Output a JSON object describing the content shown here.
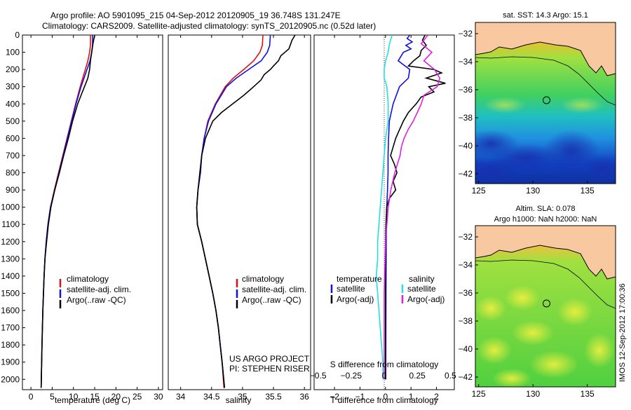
{
  "header": {
    "line1": "Argo profile: AO 5901095_215 04-Sep-2012 20120905_19 36.748S 131.247E",
    "line2": "Climatology: CARS2009. Satellite-adjusted climatology: synTS_20120905.nc (0.52d later)"
  },
  "colors": {
    "climatology": "#e01010",
    "satellite": "#1010e0",
    "argo": "#000000",
    "sat_s": "#20e0e0",
    "argo_s": "#e020e0",
    "land": "#f8c8a0"
  },
  "chart_data": [
    {
      "type": "line",
      "panel": "temperature",
      "xlabel": "temperature (deg C)",
      "xlim": [
        -2,
        31
      ],
      "xticks": [
        0,
        5,
        10,
        15,
        20,
        25,
        30
      ],
      "ylim": [
        0,
        2060
      ],
      "yticks": [
        0,
        100,
        200,
        300,
        400,
        500,
        600,
        700,
        800,
        900,
        1000,
        1100,
        1200,
        1300,
        1400,
        1500,
        1600,
        1700,
        1800,
        1900,
        2000
      ],
      "yreversed": true,
      "legend": {
        "position": "center-right",
        "entries": [
          "climatology",
          "satellite-adj. clim.",
          "Argo(..raw -QC)"
        ]
      },
      "series": [
        {
          "key": "climatology",
          "depth": [
            0,
            60,
            100,
            150,
            200,
            300,
            400,
            500,
            600,
            700,
            800,
            900,
            1000,
            1100,
            1200,
            1300,
            1400,
            1600,
            1800,
            2050
          ],
          "values": [
            14.0,
            14.0,
            13.8,
            13.4,
            12.8,
            11.6,
            10.5,
            9.5,
            8.5,
            7.5,
            6.5,
            5.5,
            4.6,
            4.0,
            3.6,
            3.3,
            3.1,
            2.8,
            2.6,
            2.4
          ]
        },
        {
          "key": "satellite",
          "depth": [
            0,
            60,
            100,
            150,
            200,
            300,
            400,
            500,
            600,
            700,
            800,
            900,
            1000,
            1100,
            1200,
            1300,
            1400,
            1600,
            1800,
            2050
          ],
          "values": [
            14.5,
            14.5,
            14.3,
            13.9,
            13.2,
            11.8,
            10.6,
            9.6,
            8.6,
            7.6,
            6.6,
            5.6,
            4.6,
            4.0,
            3.6,
            3.3,
            3.1,
            2.8,
            2.6,
            2.4
          ]
        },
        {
          "key": "argo",
          "depth": [
            0,
            50,
            100,
            150,
            200,
            250,
            300,
            350,
            400,
            450,
            500,
            600,
            700,
            800,
            900,
            1000,
            1100,
            1200,
            1300,
            1400,
            1600,
            1800,
            2050
          ],
          "values": [
            15.0,
            14.6,
            14.3,
            14.0,
            13.8,
            13.4,
            12.6,
            11.8,
            11.0,
            10.4,
            9.8,
            8.8,
            7.7,
            6.7,
            5.6,
            4.7,
            4.1,
            3.7,
            3.3,
            3.1,
            2.8,
            2.6,
            2.4
          ]
        }
      ]
    },
    {
      "type": "line",
      "panel": "salinity",
      "xlabel": "salinity",
      "xlim": [
        33.8,
        36.1
      ],
      "xticks": [
        34,
        34.5,
        35,
        35.5,
        36
      ],
      "xtick_labels": [
        "34",
        "34.5",
        "35",
        "35.5",
        "36"
      ],
      "ylim": [
        0,
        2060
      ],
      "yreversed": true,
      "legend": {
        "position": "center-right",
        "entries": [
          "climatology",
          "satellite-adj. clim.",
          "Argo(..raw -QC)"
        ]
      },
      "annotation": [
        "US ARGO PROJECT",
        "PI: STEPHEN RISER"
      ],
      "series": [
        {
          "key": "climatology",
          "depth": [
            0,
            60,
            100,
            150,
            200,
            250,
            300,
            400,
            500,
            600,
            700,
            800,
            900,
            1000,
            1100,
            1200,
            1300,
            1400,
            1500,
            1600,
            1700,
            1800,
            1900,
            2050
          ],
          "values": [
            35.33,
            35.32,
            35.28,
            35.18,
            35.02,
            34.85,
            34.72,
            34.56,
            34.44,
            34.38,
            34.34,
            34.32,
            34.28,
            34.26,
            34.27,
            34.34,
            34.4,
            34.46,
            34.52,
            34.57,
            34.61,
            34.64,
            34.67,
            34.7
          ]
        },
        {
          "key": "satellite",
          "depth": [
            0,
            60,
            100,
            150,
            200,
            250,
            300,
            400,
            500,
            600,
            700,
            800,
            900,
            1000,
            1100,
            1200,
            1300,
            1400,
            1500,
            1600,
            1700,
            1800,
            1900,
            2050
          ],
          "values": [
            35.45,
            35.44,
            35.4,
            35.3,
            35.1,
            34.9,
            34.74,
            34.57,
            34.45,
            34.38,
            34.34,
            34.32,
            34.28,
            34.26,
            34.27,
            34.34,
            34.4,
            34.46,
            34.52,
            34.57,
            34.61,
            34.64,
            34.67,
            34.71
          ]
        },
        {
          "key": "argo",
          "depth": [
            0,
            30,
            80,
            120,
            150,
            180,
            200,
            230,
            260,
            300,
            350,
            400,
            450,
            500,
            600,
            700,
            800,
            900,
            1000,
            1100,
            1200,
            1300,
            1400,
            1500,
            1600,
            1700,
            1800,
            1900,
            2050
          ],
          "values": [
            35.85,
            35.8,
            35.75,
            35.62,
            35.58,
            35.5,
            35.45,
            35.35,
            35.3,
            35.18,
            35.02,
            34.84,
            34.66,
            34.52,
            34.4,
            34.34,
            34.31,
            34.28,
            34.26,
            34.27,
            34.34,
            34.4,
            34.46,
            34.52,
            34.57,
            34.61,
            34.64,
            34.67,
            34.71
          ]
        }
      ]
    },
    {
      "type": "line",
      "panel": "difference",
      "xlabel": "T difference from climatology",
      "xlabel_top": "S difference from climatology",
      "xlim": [
        -2.8,
        2.7
      ],
      "xticks": [
        -2,
        -1,
        0,
        1,
        2
      ],
      "xticks_top": [
        -0.5,
        -0.25,
        0,
        0.25,
        0.5
      ],
      "ylim": [
        0,
        2060
      ],
      "yreversed": true,
      "legend": {
        "position": "lower-center",
        "headings": [
          "temperature",
          "salinity"
        ],
        "entries": [
          "satellite",
          "Argo(-adj)",
          "satellite",
          "Argo(-adj)"
        ]
      },
      "series": [
        {
          "key": "sat_t",
          "name": "satellite",
          "depth": [
            0,
            20,
            40,
            60,
            80,
            100,
            150,
            200,
            250,
            300,
            400,
            500,
            600,
            700,
            800,
            900,
            1000,
            1200,
            1500,
            2000
          ],
          "values": [
            0.95,
            0.85,
            1.05,
            0.8,
            1.0,
            0.7,
            0.5,
            0.95,
            0.9,
            0.55,
            0.3,
            0.15,
            0.12,
            0.1,
            0.1,
            0.08,
            0.05,
            0.03,
            0.02,
            0.01
          ]
        },
        {
          "key": "argo_t",
          "name": "Argo(-adj)",
          "depth": [
            0,
            30,
            60,
            90,
            120,
            150,
            180,
            200,
            220,
            250,
            280,
            300,
            330,
            360,
            400,
            450,
            500,
            550,
            600,
            650,
            700,
            750,
            800,
            850,
            900,
            950,
            1000,
            1100,
            1200,
            1500,
            2000
          ],
          "values": [
            1.55,
            1.45,
            1.6,
            1.4,
            1.35,
            1.1,
            0.9,
            1.9,
            2.2,
            1.6,
            2.35,
            1.7,
            1.9,
            1.4,
            1.2,
            0.9,
            0.7,
            0.55,
            0.4,
            0.3,
            0.2,
            0.35,
            0.45,
            0.3,
            0.4,
            0.15,
            0.05,
            0.02,
            0.0,
            0.0,
            0.0
          ]
        },
        {
          "key": "sat_s",
          "name": "satellite",
          "depth": [
            0,
            50,
            100,
            150,
            200,
            250,
            300,
            400,
            500,
            600,
            700,
            800,
            900,
            1000,
            1100,
            1200,
            1300,
            1400,
            1500,
            1600,
            1700,
            1800,
            1900,
            2000
          ],
          "values": [
            0.06,
            0.04,
            0.03,
            0.01,
            0.0,
            0.0,
            0.02,
            0.03,
            0.03,
            0.01,
            0.0,
            -0.01,
            -0.02,
            -0.03,
            -0.04,
            -0.05,
            -0.05,
            -0.06,
            -0.05,
            -0.04,
            -0.03,
            -0.02,
            -0.01,
            -0.01
          ]
        },
        {
          "key": "argo_s",
          "name": "Argo(-adj)",
          "depth": [
            0,
            50,
            100,
            150,
            200,
            250,
            300,
            350,
            400,
            450,
            500,
            550,
            600,
            650,
            700,
            800,
            900,
            1000,
            1200,
            1500,
            2000
          ],
          "values": [
            0.33,
            0.28,
            0.36,
            0.3,
            0.38,
            0.42,
            0.4,
            0.3,
            0.28,
            0.25,
            0.22,
            0.18,
            0.15,
            0.13,
            0.12,
            0.08,
            0.05,
            0.03,
            0.01,
            0.0,
            0.0
          ]
        }
      ]
    },
    {
      "type": "heatmap",
      "panel": "sst-map",
      "title": "sat. SST: 14.3 Argo: 15.1",
      "xlim": [
        124.7,
        137.6
      ],
      "ylim": [
        -42.7,
        -31.2
      ],
      "xticks": [
        125,
        130,
        135
      ],
      "yticks": [
        -32,
        -34,
        -36,
        -38,
        -40,
        -42
      ],
      "argo_position": [
        131.247,
        -36.748
      ]
    },
    {
      "type": "heatmap",
      "panel": "sla-map",
      "title": "Altim. SLA: 0.078",
      "subtitle": "Argo h1000: NaN h2000: NaN",
      "xlim": [
        124.7,
        137.6
      ],
      "ylim": [
        -42.7,
        -31.2
      ],
      "xticks": [
        125,
        130,
        135
      ],
      "yticks": [
        -32,
        -34,
        -36,
        -38,
        -40,
        -42
      ],
      "argo_position": [
        131.247,
        -36.748
      ]
    }
  ],
  "side_label": "IMOS 12-Sep-2012 17:00:36"
}
